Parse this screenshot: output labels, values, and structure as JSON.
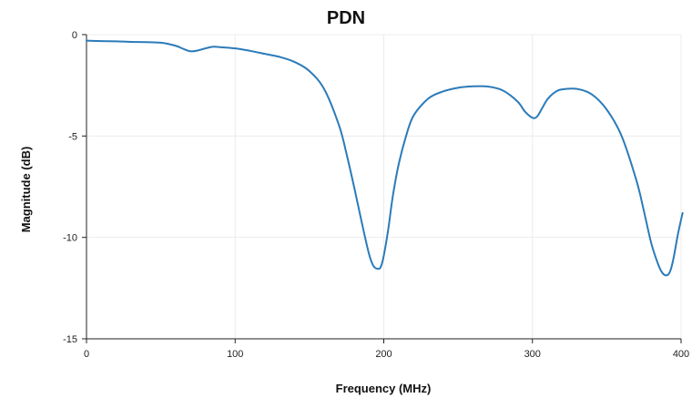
{
  "chart_data": {
    "type": "line",
    "title": "PDN",
    "xlabel": "Frequency (MHz)",
    "ylabel": "Magnitude (dB)",
    "xlim": [
      0,
      400
    ],
    "ylim": [
      -15,
      0
    ],
    "xticks": [
      0,
      100,
      200,
      300,
      400
    ],
    "yticks": [
      0,
      -5,
      -10,
      -15
    ],
    "xtick_labels": [
      "0",
      "100",
      "200",
      "300",
      "400"
    ],
    "ytick_labels": [
      "0",
      "-5",
      "-10",
      "-15"
    ],
    "grid": true,
    "series": [
      {
        "color": "#2b7bb9",
        "x": [
          0,
          10,
          20,
          30,
          40,
          50,
          60,
          65,
          70,
          75,
          80,
          85,
          90,
          100,
          110,
          120,
          130,
          140,
          150,
          160,
          170,
          175,
          180,
          185,
          190,
          193,
          196,
          198,
          200,
          203,
          206,
          210,
          215,
          220,
          230,
          240,
          250,
          260,
          270,
          280,
          290,
          295,
          300,
          303,
          306,
          310,
          315,
          320,
          330,
          340,
          350,
          360,
          370,
          375,
          380,
          385,
          388,
          391,
          393,
          395,
          398,
          401
        ],
        "y": [
          -0.3,
          -0.32,
          -0.33,
          -0.36,
          -0.37,
          -0.4,
          -0.55,
          -0.7,
          -0.82,
          -0.78,
          -0.68,
          -0.6,
          -0.62,
          -0.68,
          -0.8,
          -0.95,
          -1.1,
          -1.35,
          -1.8,
          -2.7,
          -4.5,
          -5.9,
          -7.5,
          -9.2,
          -10.8,
          -11.4,
          -11.55,
          -11.45,
          -10.9,
          -9.6,
          -8.0,
          -6.4,
          -5.0,
          -4.0,
          -3.15,
          -2.8,
          -2.62,
          -2.55,
          -2.56,
          -2.75,
          -3.3,
          -3.8,
          -4.1,
          -4.05,
          -3.7,
          -3.2,
          -2.85,
          -2.7,
          -2.68,
          -2.95,
          -3.7,
          -5.0,
          -7.2,
          -8.7,
          -10.3,
          -11.4,
          -11.8,
          -11.85,
          -11.6,
          -11.0,
          -9.8,
          -8.8
        ]
      }
    ]
  }
}
